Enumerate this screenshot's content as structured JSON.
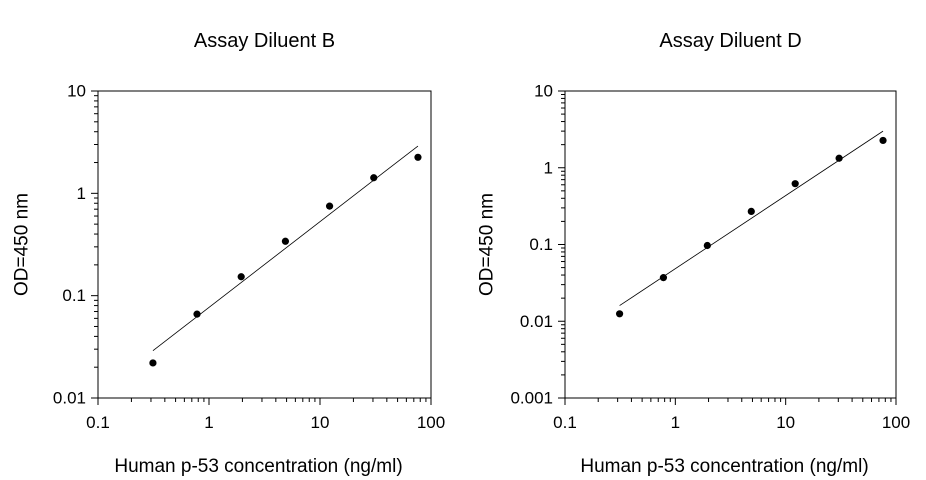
{
  "chart_data": [
    {
      "type": "scatter",
      "title": "Assay Diluent B",
      "xlabel": "Human p-53 concentration (ng/ml)",
      "ylabel": "OD=450 nm",
      "x_scale": "log",
      "y_scale": "log",
      "xlim": [
        0.1,
        100
      ],
      "ylim": [
        0.01,
        10
      ],
      "xticks": [
        "0.1",
        "1",
        "10",
        "100"
      ],
      "yticks": [
        "0.01",
        "0.1",
        "1",
        "10"
      ],
      "grid": false,
      "series": [
        {
          "x": [
            0.3125,
            0.78,
            1.95,
            4.88,
            12.2,
            30.5,
            76.3
          ],
          "y": [
            0.022,
            0.066,
            0.153,
            0.34,
            0.75,
            1.42,
            2.25
          ]
        }
      ],
      "fit_line": {
        "x": [
          0.3125,
          76.3
        ],
        "y": [
          0.029,
          2.9
        ]
      }
    },
    {
      "type": "scatter",
      "title": "Assay Diluent D",
      "xlabel": "Human p-53 concentration (ng/ml)",
      "ylabel": "OD=450 nm",
      "x_scale": "log",
      "y_scale": "log",
      "xlim": [
        0.1,
        100
      ],
      "ylim": [
        0.001,
        10
      ],
      "xticks": [
        "0.1",
        "1",
        "10",
        "100"
      ],
      "yticks": [
        "0.001",
        "0.01",
        "0.1",
        "1",
        "10"
      ],
      "grid": false,
      "series": [
        {
          "x": [
            0.3125,
            0.78,
            1.95,
            4.88,
            12.2,
            30.5,
            76.3
          ],
          "y": [
            0.0125,
            0.037,
            0.097,
            0.27,
            0.62,
            1.33,
            2.27
          ]
        }
      ],
      "fit_line": {
        "x": [
          0.3125,
          76.3
        ],
        "y": [
          0.016,
          3.0
        ]
      }
    }
  ]
}
